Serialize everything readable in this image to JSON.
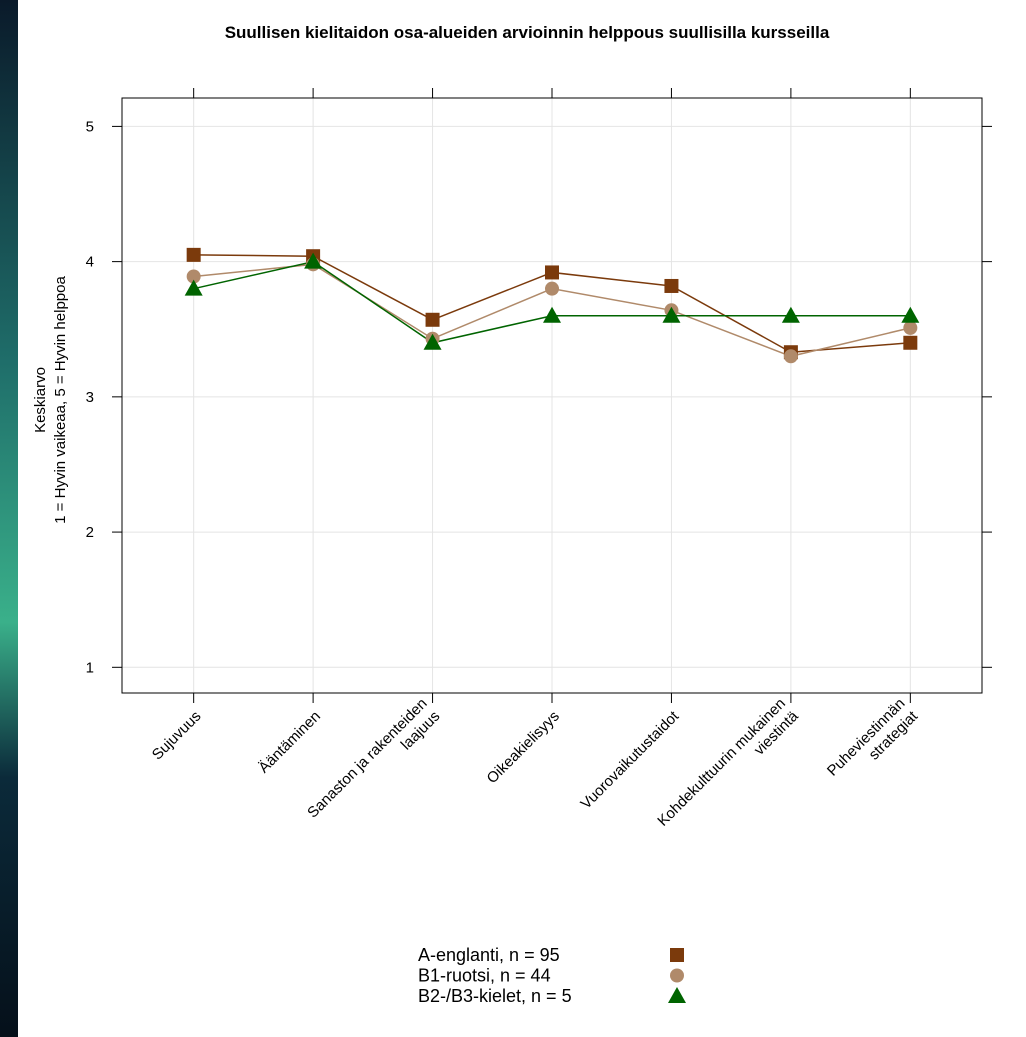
{
  "chart_data": {
    "type": "line",
    "title": "Suullisen kielitaidon osa-alueiden arvioinnin helppous suullisilla kursseilla",
    "y_label": [
      "Keskiarvo",
      "1 = Hyvin vaikeaa, 5 = Hyvin helppoa"
    ],
    "categories": [
      "Sujuvuus",
      "Ääntäminen",
      "Sanaston ja rakenteiden\nlaajuus",
      "Oikeakielisyys",
      "Vuorovaikutustaidot",
      "Kohdekulttuurin mukainen\nviestintä",
      "Puheviestinnän\nstrategiat"
    ],
    "series": [
      {
        "name": "A-englanti, n = 95",
        "color": "#7b3a0c",
        "marker": "square",
        "values": [
          4.05,
          4.04,
          3.57,
          3.92,
          3.82,
          3.33,
          3.4
        ]
      },
      {
        "name": "B1-ruotsi, n = 44",
        "color": "#b08a6a",
        "marker": "circle",
        "values": [
          3.89,
          3.98,
          3.43,
          3.8,
          3.64,
          3.3,
          3.51
        ]
      },
      {
        "name": "B2-/B3-kielet, n = 5",
        "color": "#006400",
        "marker": "triangle",
        "values": [
          3.8,
          4.0,
          3.4,
          3.6,
          3.6,
          3.6,
          3.6
        ]
      }
    ],
    "ylim": [
      0.81,
      5.21
    ],
    "yticks": [
      1,
      2,
      3,
      4,
      5
    ],
    "grid": true
  }
}
